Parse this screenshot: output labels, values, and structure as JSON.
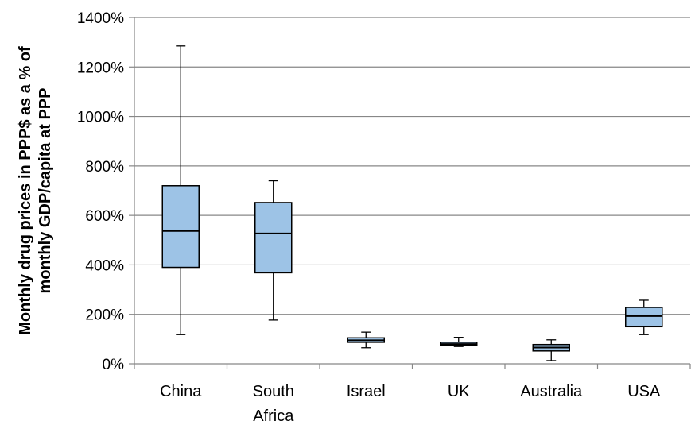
{
  "chart_data": {
    "type": "box",
    "title": "",
    "xlabel": "",
    "ylabel_lines": [
      "Monthly drug prices in PPP$ as a % of",
      "monthly GDP/capita at PPP"
    ],
    "ylim": [
      0,
      1400
    ],
    "ytick_values": [
      0,
      200,
      400,
      600,
      800,
      1000,
      1200,
      1400
    ],
    "ytick_labels": [
      "0%",
      "200%",
      "400%",
      "600%",
      "800%",
      "1000%",
      "1200%",
      "1400%"
    ],
    "grid": true,
    "categories": [
      {
        "label_lines": [
          "China"
        ],
        "min": 118,
        "q1": 390,
        "median": 537,
        "q3": 720,
        "max": 1285
      },
      {
        "label_lines": [
          "South",
          "Africa"
        ],
        "min": 177,
        "q1": 368,
        "median": 527,
        "q3": 652,
        "max": 740
      },
      {
        "label_lines": [
          "Israel"
        ],
        "min": 65,
        "q1": 87,
        "median": 95,
        "q3": 105,
        "max": 128
      },
      {
        "label_lines": [
          "UK"
        ],
        "min": 70,
        "q1": 75,
        "median": 80,
        "q3": 87,
        "max": 107
      },
      {
        "label_lines": [
          "Australia"
        ],
        "min": 13,
        "q1": 52,
        "median": 66,
        "q3": 78,
        "max": 97
      },
      {
        "label_lines": [
          "USA"
        ],
        "min": 118,
        "q1": 150,
        "median": 193,
        "q3": 228,
        "max": 257
      }
    ],
    "colors": {
      "box_fill": "#9DC3E6",
      "stroke": "#000000",
      "grid": "#878787"
    }
  }
}
